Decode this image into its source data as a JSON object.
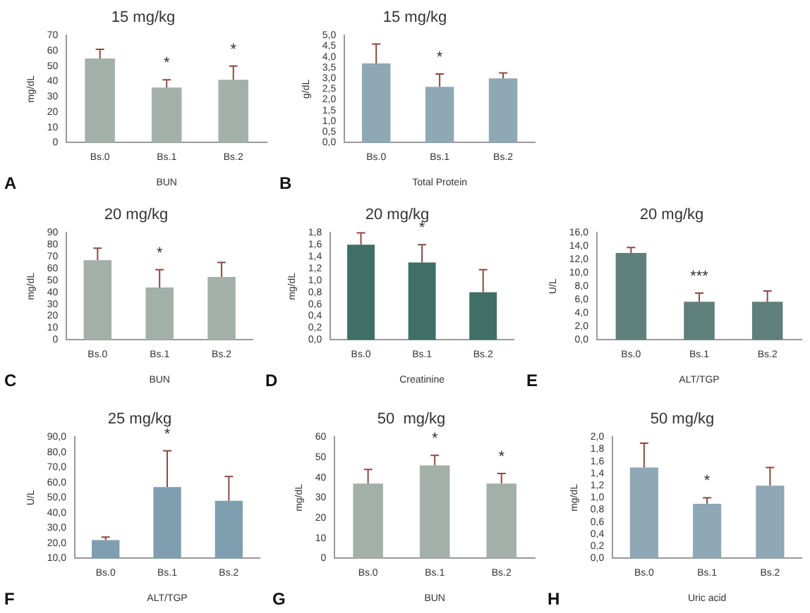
{
  "chart_data": [
    {
      "type": "bar",
      "title": "15 mg/kg",
      "ylabel": "mg/dL",
      "xlabel": "BUN",
      "categories": [
        "Bs.0",
        "Bs.1",
        "Bs.2"
      ],
      "values": [
        55,
        36,
        41
      ],
      "errors": [
        [
          55,
          61
        ],
        [
          36,
          41
        ],
        [
          41,
          50
        ]
      ],
      "color": "#a3b0a9",
      "ylim": [
        0,
        70
      ],
      "yticks": [
        0,
        10,
        20,
        30,
        40,
        50,
        60,
        70
      ],
      "grid": false,
      "legend": false,
      "annotations": [
        "A",
        {
          "text": "*",
          "x": "Bs.1",
          "y": 41
        },
        {
          "text": "*",
          "x": "Bs.2",
          "y": 50
        }
      ]
    },
    {
      "type": "bar",
      "title": "15 mg/kg",
      "ylabel": "g/dL",
      "xlabel": "Total Protein",
      "categories": [
        "Bs.0",
        "Bs.1",
        "Bs.2"
      ],
      "values": [
        3.7,
        2.6,
        3.0
      ],
      "errors": [
        [
          3.7,
          4.6
        ],
        [
          2.6,
          3.2
        ],
        [
          3.0,
          3.25
        ]
      ],
      "color": "#8fa8b5",
      "ylim": [
        0,
        5
      ],
      "yticks": [
        {
          "value": 0,
          "label": "0,0"
        },
        {
          "value": 0.5,
          "label": "0,5"
        },
        {
          "value": 1,
          "label": "1,0"
        },
        {
          "value": 1.5,
          "label": "1,5"
        },
        {
          "value": 2,
          "label": "2,0"
        },
        {
          "value": 2.5,
          "label": "2,5"
        },
        {
          "value": 3,
          "label": "3,0"
        },
        {
          "value": 3.5,
          "label": "3,5"
        },
        {
          "value": 4,
          "label": "4,0"
        },
        {
          "value": 4.5,
          "label": "4,5"
        },
        {
          "value": 5,
          "label": "5,0"
        }
      ],
      "grid": false,
      "legend": false,
      "annotations": [
        "B",
        {
          "text": "*",
          "x": "Bs.1",
          "y": 3.2
        }
      ]
    },
    {
      "type": "bar",
      "title": "20 mg/kg",
      "ylabel": "mg/dL",
      "xlabel": "BUN",
      "categories": [
        "Bs.0",
        "Bs.1",
        "Bs.2"
      ],
      "values": [
        67,
        44,
        53
      ],
      "errors": [
        [
          67,
          77
        ],
        [
          44,
          59
        ],
        [
          53,
          65
        ]
      ],
      "color": "#a3b0a9",
      "ylim": [
        0,
        90
      ],
      "yticks": [
        0,
        10,
        20,
        30,
        40,
        50,
        60,
        70,
        80,
        90
      ],
      "grid": false,
      "legend": false,
      "annotations": [
        "C",
        {
          "text": "*",
          "x": "Bs.1",
          "y": 59
        }
      ]
    },
    {
      "type": "bar",
      "title": "20 mg/kg",
      "ylabel": "mg/dL",
      "xlabel": "Creatinine",
      "categories": [
        "Bs.0",
        "Bs.1",
        "Bs.2"
      ],
      "values": [
        1.6,
        1.3,
        0.8
      ],
      "errors": [
        [
          1.6,
          1.8
        ],
        [
          1.3,
          1.6
        ],
        [
          0.8,
          1.18
        ]
      ],
      "color": "#3f6f66",
      "ylim": [
        0,
        1.8
      ],
      "yticks": [
        {
          "value": 0,
          "label": "0,0"
        },
        {
          "value": 0.2,
          "label": "0,2"
        },
        {
          "value": 0.4,
          "label": "0,4"
        },
        {
          "value": 0.6,
          "label": "0,6"
        },
        {
          "value": 0.8,
          "label": "0,8"
        },
        {
          "value": 1,
          "label": "1,0"
        },
        {
          "value": 1.2,
          "label": "1,2"
        },
        {
          "value": 1.4,
          "label": "1,4"
        },
        {
          "value": 1.6,
          "label": "1,6"
        },
        {
          "value": 1.8,
          "label": "1,8"
        }
      ],
      "grid": false,
      "legend": false,
      "annotations": [
        "D",
        {
          "text": "*",
          "x": "Bs.1",
          "y": 1.6
        }
      ]
    },
    {
      "type": "bar",
      "title": "20 mg/kg",
      "ylabel": "U/L",
      "xlabel": "ALT/TGP",
      "categories": [
        "Bs.0",
        "Bs.1",
        "Bs.2"
      ],
      "values": [
        13,
        5.7,
        5.7
      ],
      "errors": [
        [
          13,
          13.8
        ],
        [
          5.7,
          7
        ],
        [
          5.7,
          7.3
        ]
      ],
      "color": "#5f7f7a",
      "ylim": [
        0,
        16
      ],
      "yticks": [
        {
          "value": 0,
          "label": "0,0"
        },
        {
          "value": 2,
          "label": "2,0"
        },
        {
          "value": 4,
          "label": "4,0"
        },
        {
          "value": 6,
          "label": "6,0"
        },
        {
          "value": 8,
          "label": "8,0"
        },
        {
          "value": 10,
          "label": "10,0"
        },
        {
          "value": 12,
          "label": "12,0"
        },
        {
          "value": 14,
          "label": "14,0"
        },
        {
          "value": 16,
          "label": "16,0"
        }
      ],
      "grid": false,
      "legend": false,
      "annotations": [
        "E",
        {
          "text": "***",
          "x": "Bs.1",
          "y": 7
        }
      ]
    },
    {
      "type": "bar",
      "title": "25 mg/kg",
      "ylabel": "U/L",
      "xlabel": "ALT/TGP",
      "categories": [
        "Bs.0",
        "Bs.1",
        "Bs.2"
      ],
      "values": [
        22,
        57,
        48
      ],
      "errors": [
        [
          22,
          24
        ],
        [
          57,
          81
        ],
        [
          48,
          64
        ]
      ],
      "color": "#7f9fb0",
      "ylim": [
        10,
        90
      ],
      "yticks": [
        {
          "value": 10,
          "label": "10,0"
        },
        {
          "value": 20,
          "label": "20,0"
        },
        {
          "value": 30,
          "label": "30,0"
        },
        {
          "value": 40,
          "label": "40,0"
        },
        {
          "value": 50,
          "label": "50,0"
        },
        {
          "value": 60,
          "label": "60,0"
        },
        {
          "value": 70,
          "label": "70,0"
        },
        {
          "value": 80,
          "label": "80,0"
        },
        {
          "value": 90,
          "label": "90,0"
        }
      ],
      "grid": false,
      "legend": false,
      "annotations": [
        "F",
        {
          "text": "*",
          "x": "Bs.1",
          "y": 81
        }
      ]
    },
    {
      "type": "bar",
      "title": "50  mg/kg",
      "ylabel": "mg/dL",
      "xlabel": "BUN",
      "categories": [
        "Bs.0",
        "Bs.1",
        "Bs.2"
      ],
      "values": [
        37,
        46,
        37
      ],
      "errors": [
        [
          37,
          44
        ],
        [
          46,
          51
        ],
        [
          37,
          42
        ]
      ],
      "color": "#a3b0a9",
      "ylim": [
        0,
        60
      ],
      "yticks": [
        0,
        10,
        20,
        30,
        40,
        50,
        60
      ],
      "grid": false,
      "legend": false,
      "annotations": [
        "G",
        {
          "text": "*",
          "x": "Bs.1",
          "y": 51
        },
        {
          "text": "*",
          "x": "Bs.2",
          "y": 42
        }
      ]
    },
    {
      "type": "bar",
      "title": "50 mg/kg",
      "ylabel": "mg/dL",
      "xlabel": "Uric acid",
      "categories": [
        "Bs.0",
        "Bs.1",
        "Bs.2"
      ],
      "values": [
        1.5,
        0.9,
        1.2
      ],
      "errors": [
        [
          1.5,
          1.9
        ],
        [
          0.9,
          1.0
        ],
        [
          1.2,
          1.5
        ]
      ],
      "color": "#8fa8b5",
      "ylim": [
        0,
        2
      ],
      "yticks": [
        {
          "value": 0,
          "label": "0,0"
        },
        {
          "value": 0.2,
          "label": "0,2"
        },
        {
          "value": 0.4,
          "label": "0,4"
        },
        {
          "value": 0.6,
          "label": "0,6"
        },
        {
          "value": 0.8,
          "label": "0,8"
        },
        {
          "value": 1,
          "label": "1,0"
        },
        {
          "value": 1.2,
          "label": "1,2"
        },
        {
          "value": 1.4,
          "label": "1,4"
        },
        {
          "value": 1.6,
          "label": "1,6"
        },
        {
          "value": 1.8,
          "label": "1,8"
        },
        {
          "value": 2,
          "label": "2,0"
        }
      ],
      "grid": false,
      "legend": false,
      "annotations": [
        "H",
        {
          "text": "*",
          "x": "Bs.1",
          "y": 1.0
        }
      ]
    }
  ]
}
